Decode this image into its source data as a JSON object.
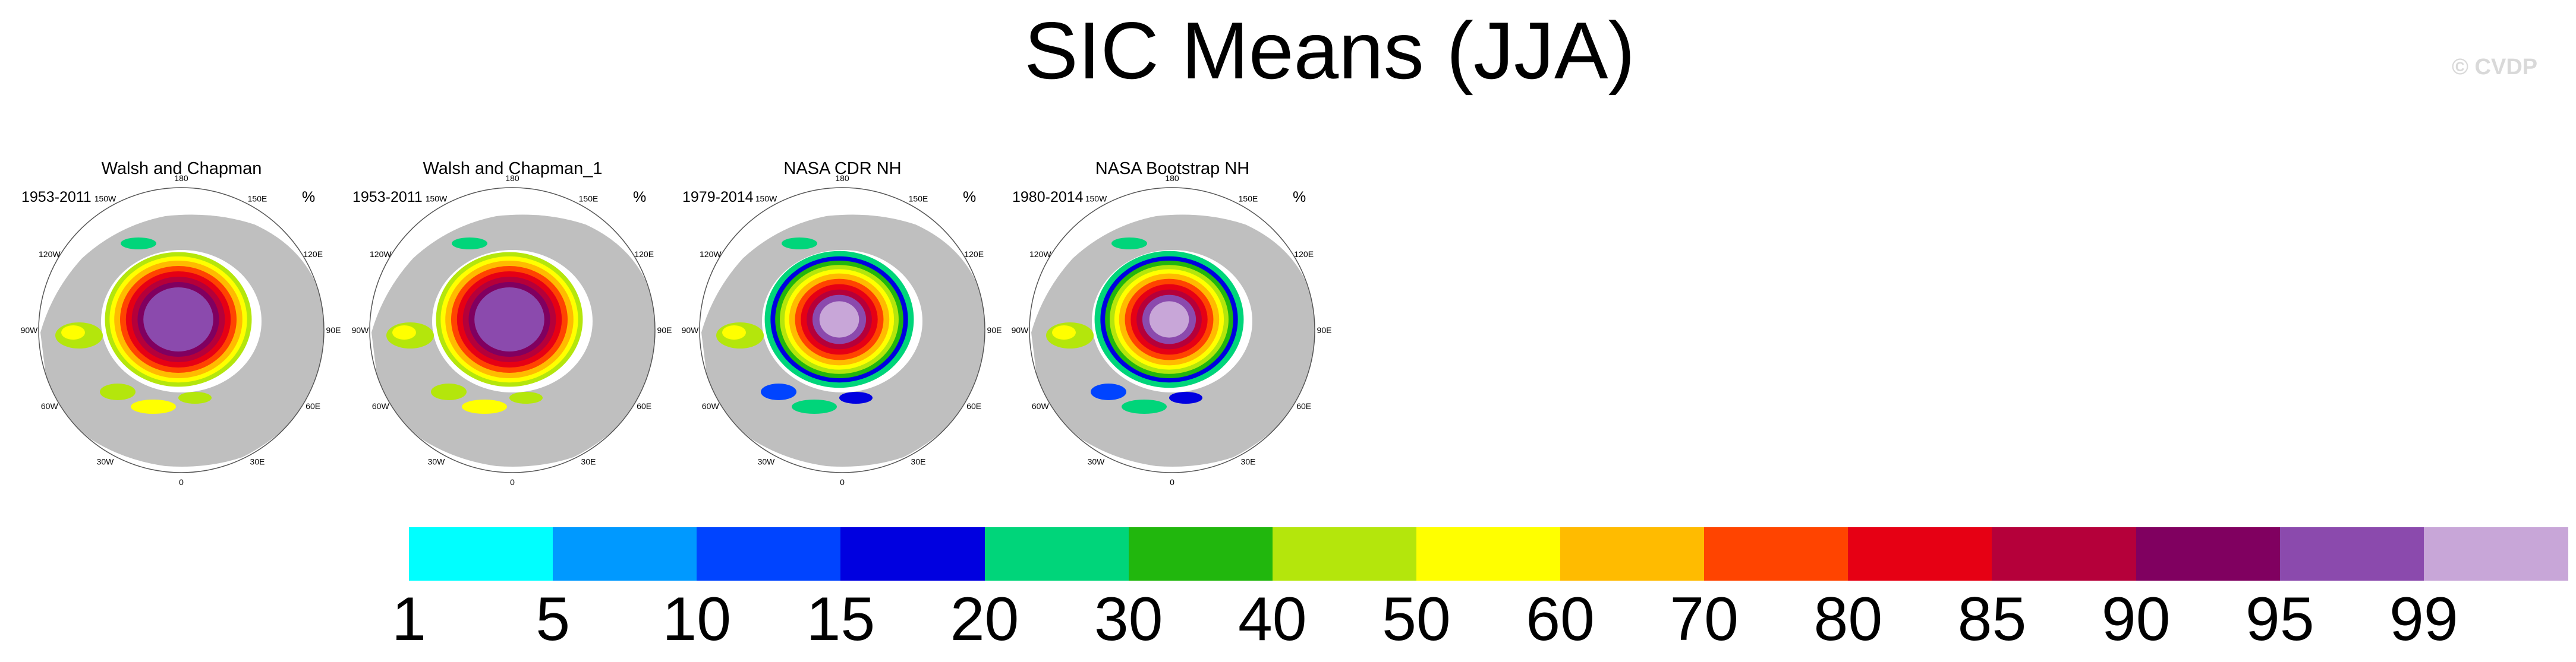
{
  "title": "SIC Means (JJA)",
  "copyright": "© CVDP",
  "panels": [
    {
      "title": "Walsh and Chapman",
      "period": "1953-2011",
      "units": "%",
      "style": "wc"
    },
    {
      "title": "Walsh and Chapman_1",
      "period": "1953-2011",
      "units": "%",
      "style": "wc"
    },
    {
      "title": "NASA CDR NH",
      "period": "1979-2014",
      "units": "%",
      "style": "nasa"
    },
    {
      "title": "NASA Bootstrap NH",
      "period": "1980-2014",
      "units": "%",
      "style": "nasa"
    }
  ],
  "longitude_labels": [
    "180",
    "150E",
    "120E",
    "90E",
    "60E",
    "30E",
    "0",
    "30W",
    "60W",
    "90W",
    "120W",
    "150W"
  ],
  "colorbar": {
    "labels": [
      "1",
      "5",
      "10",
      "15",
      "20",
      "30",
      "40",
      "50",
      "60",
      "70",
      "80",
      "85",
      "90",
      "95",
      "99"
    ],
    "colors": [
      "#00ffff",
      "#0099ff",
      "#0044ff",
      "#0000e0",
      "#00d57a",
      "#21b70d",
      "#b4e60c",
      "#ffff00",
      "#ffbb00",
      "#ff4400",
      "#e60014",
      "#b5003a",
      "#800060",
      "#8b4aad",
      "#c8a6d8"
    ]
  }
}
